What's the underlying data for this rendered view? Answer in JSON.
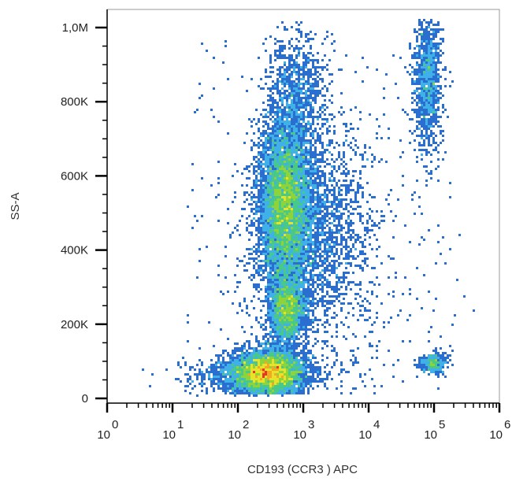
{
  "chart_data": {
    "type": "scatter",
    "subtype": "flow-cytometry density dot plot",
    "title": "",
    "xlabel": "CD193 (CCR3 ) APC",
    "ylabel": "SS-A",
    "x_scale": "log",
    "xlim": [
      1,
      1000000
    ],
    "ylim": [
      0,
      1030000
    ],
    "x_ticks": [
      {
        "value": 1,
        "base": "10",
        "exp": "0"
      },
      {
        "value": 10,
        "base": "10",
        "exp": "1"
      },
      {
        "value": 100,
        "base": "10",
        "exp": "2"
      },
      {
        "value": 1000,
        "base": "10",
        "exp": "3"
      },
      {
        "value": 10000,
        "base": "10",
        "exp": "4"
      },
      {
        "value": 100000,
        "base": "10",
        "exp": "5"
      },
      {
        "value": 1000000,
        "base": "10",
        "exp": "6"
      }
    ],
    "y_ticks": [
      {
        "value": 0,
        "label": "0"
      },
      {
        "value": 200000,
        "label": "200K"
      },
      {
        "value": 400000,
        "label": "400K"
      },
      {
        "value": 600000,
        "label": "600K"
      },
      {
        "value": 800000,
        "label": "800K"
      },
      {
        "value": 1000000,
        "label": "1,0M"
      }
    ],
    "grid": false,
    "legend": "none",
    "colormap": [
      "#2b3fa8",
      "#2a6fd0",
      "#3fb0e8",
      "#48c98a",
      "#8fd33a",
      "#e6e42a",
      "#f5a623",
      "#e8352a"
    ],
    "populations": [
      {
        "x_center": 300,
        "y_center": 70000,
        "count": 5000,
        "density": "peak"
      },
      {
        "x_center": 500,
        "y_center": 520000,
        "count": 7000,
        "density": "high"
      },
      {
        "x_center": 550,
        "y_center": 240000,
        "count": 2500,
        "density": "medium"
      },
      {
        "x_center": 800,
        "y_center": 820000,
        "count": 900,
        "density": "low"
      },
      {
        "x_center": 80000,
        "y_center": 860000,
        "count": 1100,
        "density": "low"
      },
      {
        "x_center": 100000,
        "y_center": 95000,
        "count": 350,
        "density": "low"
      }
    ]
  }
}
